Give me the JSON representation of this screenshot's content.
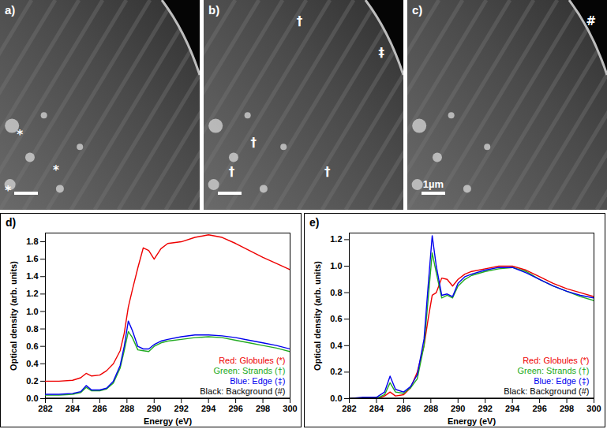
{
  "chart_data": [
    {
      "type": "line",
      "panel_label": "d)",
      "xlabel": "Energy (eV)",
      "ylabel": "Optical density (arb. units)",
      "x": [
        282,
        283,
        284,
        284.6,
        285.0,
        285.4,
        286,
        286.5,
        287,
        287.5,
        287.8,
        288.1,
        288.4,
        288.8,
        289.2,
        289.6,
        290,
        290.5,
        291,
        292,
        293,
        294,
        295,
        296,
        297,
        298,
        299,
        300
      ],
      "xlim": [
        282,
        300
      ],
      "xticks": [
        282,
        284,
        286,
        288,
        290,
        292,
        294,
        296,
        298,
        300
      ],
      "ylim": [
        0,
        1.9
      ],
      "yticks": [
        {
          "value": 0,
          "label": "0.0"
        },
        {
          "value": 0.2,
          "label": "0.2"
        },
        {
          "value": 0.4,
          "label": "0.4"
        },
        {
          "value": 0.6,
          "label": "0.6"
        },
        {
          "value": 0.8,
          "label": "0.8"
        },
        {
          "value": 1.0,
          "label": "1.0"
        },
        {
          "value": 1.2,
          "label": "1.2"
        },
        {
          "value": 1.4,
          "label": "1.4"
        },
        {
          "value": 1.6,
          "label": "1.6"
        },
        {
          "value": 1.8,
          "label": "1.8"
        }
      ],
      "legend": "bottom-right",
      "series": [
        {
          "name": "Red: Globules (*)",
          "color": "#ee0000",
          "values": [
            0.2,
            0.2,
            0.21,
            0.24,
            0.29,
            0.26,
            0.27,
            0.32,
            0.4,
            0.55,
            0.75,
            1.05,
            1.25,
            1.5,
            1.73,
            1.7,
            1.6,
            1.72,
            1.78,
            1.8,
            1.85,
            1.88,
            1.85,
            1.78,
            1.7,
            1.62,
            1.55,
            1.48
          ]
        },
        {
          "name": "Green: Strands (†)",
          "color": "#22aa22",
          "values": [
            0.04,
            0.04,
            0.05,
            0.07,
            0.13,
            0.09,
            0.09,
            0.11,
            0.18,
            0.35,
            0.55,
            0.77,
            0.7,
            0.56,
            0.55,
            0.54,
            0.6,
            0.64,
            0.66,
            0.68,
            0.7,
            0.71,
            0.7,
            0.67,
            0.64,
            0.61,
            0.58,
            0.54
          ]
        },
        {
          "name": "Blue: Edge (‡)",
          "color": "#0000ee",
          "values": [
            0.05,
            0.05,
            0.06,
            0.08,
            0.15,
            0.1,
            0.1,
            0.12,
            0.2,
            0.38,
            0.6,
            0.89,
            0.78,
            0.6,
            0.57,
            0.57,
            0.62,
            0.66,
            0.68,
            0.71,
            0.73,
            0.73,
            0.72,
            0.7,
            0.67,
            0.64,
            0.61,
            0.57
          ]
        },
        {
          "name": "Black: Background (#)",
          "color": "#000000",
          "values": [
            0.005,
            0.005,
            0.005,
            0.005,
            0.005,
            0.005,
            0.005,
            0.005,
            0.005,
            0.005,
            0.005,
            0.005,
            0.005,
            0.005,
            0.005,
            0.005,
            0.005,
            0.005,
            0.005,
            0.005,
            0.005,
            0.005,
            0.005,
            0.005,
            0.005,
            0.005,
            0.005,
            0.005
          ]
        }
      ]
    },
    {
      "type": "line",
      "panel_label": "e)",
      "xlabel": "Energy (eV)",
      "ylabel": "Optical density (arb. units)",
      "x": [
        282,
        283,
        284,
        284.6,
        285.0,
        285.4,
        286,
        286.5,
        287,
        287.5,
        287.8,
        288.1,
        288.4,
        288.8,
        289.2,
        289.6,
        290,
        290.5,
        291,
        292,
        293,
        294,
        295,
        296,
        297,
        298,
        299,
        300
      ],
      "xlim": [
        282,
        300
      ],
      "xticks": [
        282,
        284,
        286,
        288,
        290,
        292,
        294,
        296,
        298,
        300
      ],
      "ylim": [
        0,
        1.25
      ],
      "yticks": [
        {
          "value": 0,
          "label": "0.0"
        },
        {
          "value": 0.2,
          "label": "0.2"
        },
        {
          "value": 0.4,
          "label": "0.4"
        },
        {
          "value": 0.6,
          "label": "0.6"
        },
        {
          "value": 0.8,
          "label": "0.8"
        },
        {
          "value": 1.0,
          "label": "1.0"
        },
        {
          "value": 1.2,
          "label": "1.2"
        }
      ],
      "legend": "bottom-right",
      "series": [
        {
          "name": "Red: Globules (*)",
          "color": "#ee0000",
          "values": [
            0,
            0,
            0,
            0.02,
            0.05,
            0.02,
            0.03,
            0.08,
            0.2,
            0.4,
            0.6,
            0.78,
            0.8,
            0.91,
            0.9,
            0.85,
            0.9,
            0.94,
            0.96,
            0.98,
            1.0,
            1.0,
            0.97,
            0.92,
            0.87,
            0.83,
            0.8,
            0.77
          ]
        },
        {
          "name": "Green: Strands (†)",
          "color": "#22aa22",
          "values": [
            0,
            0,
            0,
            0.03,
            0.12,
            0.05,
            0.04,
            0.08,
            0.15,
            0.4,
            0.75,
            1.1,
            0.95,
            0.76,
            0.78,
            0.76,
            0.85,
            0.9,
            0.93,
            0.96,
            0.98,
            0.99,
            0.96,
            0.9,
            0.85,
            0.81,
            0.77,
            0.74
          ]
        },
        {
          "name": "Blue: Edge (‡)",
          "color": "#0000ee",
          "values": [
            0,
            0.01,
            0.01,
            0.05,
            0.17,
            0.07,
            0.05,
            0.09,
            0.18,
            0.45,
            0.85,
            1.23,
            1.0,
            0.78,
            0.79,
            0.77,
            0.87,
            0.92,
            0.94,
            0.97,
            0.99,
            0.99,
            0.95,
            0.9,
            0.85,
            0.81,
            0.78,
            0.76
          ]
        },
        {
          "name": "Black: Background (#)",
          "color": "#000000",
          "values": [
            0.003,
            0.003,
            0.003,
            0.003,
            0.003,
            0.003,
            0.003,
            0.003,
            0.003,
            0.003,
            0.003,
            0.003,
            0.003,
            0.003,
            0.003,
            0.003,
            0.003,
            0.003,
            0.003,
            0.003,
            0.003,
            0.003,
            0.003,
            0.003,
            0.003,
            0.003,
            0.003,
            0.003
          ]
        }
      ]
    }
  ],
  "image_panels": [
    {
      "label": "a)",
      "markers": [
        "*",
        "*",
        "*"
      ]
    },
    {
      "label": "b)",
      "markers": [
        "†",
        "†",
        "†",
        "†",
        "‡"
      ]
    },
    {
      "label": "c)",
      "markers": [
        "#"
      ],
      "scale_bar_label": "1µm"
    }
  ]
}
